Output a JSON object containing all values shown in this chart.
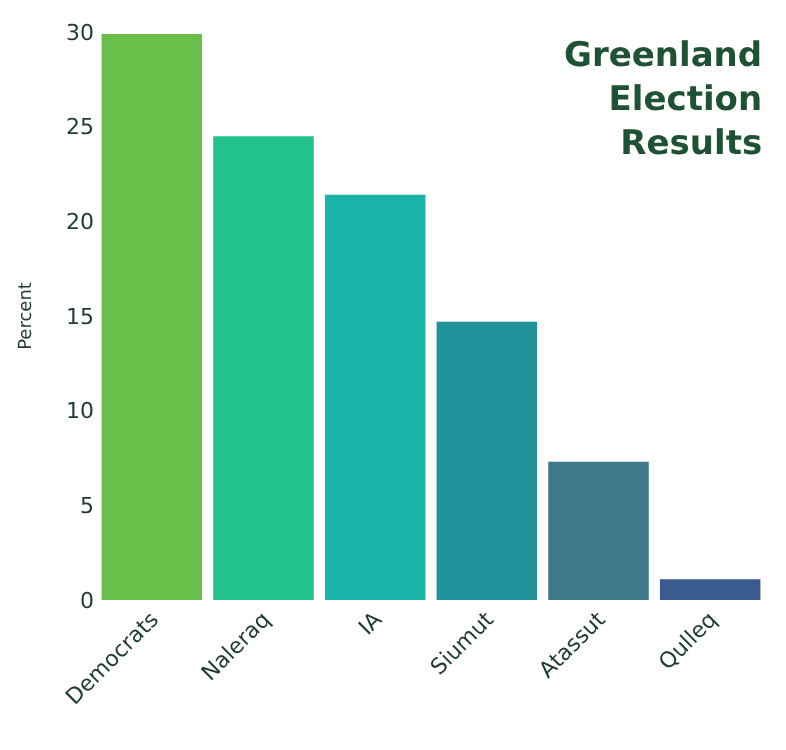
{
  "chart_data": {
    "type": "bar",
    "title": "Greenland Election Results",
    "ylabel": "Percent",
    "categories": [
      "Democrats",
      "Naleraq",
      "IA",
      "Siumut",
      "Atassut",
      "Qulleq"
    ],
    "values": [
      29.9,
      24.5,
      21.4,
      14.7,
      7.3,
      1.1
    ],
    "colors": [
      "#6abf4b",
      "#23c28d",
      "#19b3a8",
      "#1f929a",
      "#3f7a8c",
      "#3b5a8e"
    ],
    "ylim": [
      0,
      30
    ],
    "yticks": [
      0,
      5,
      10,
      15,
      20,
      25,
      30
    ]
  }
}
